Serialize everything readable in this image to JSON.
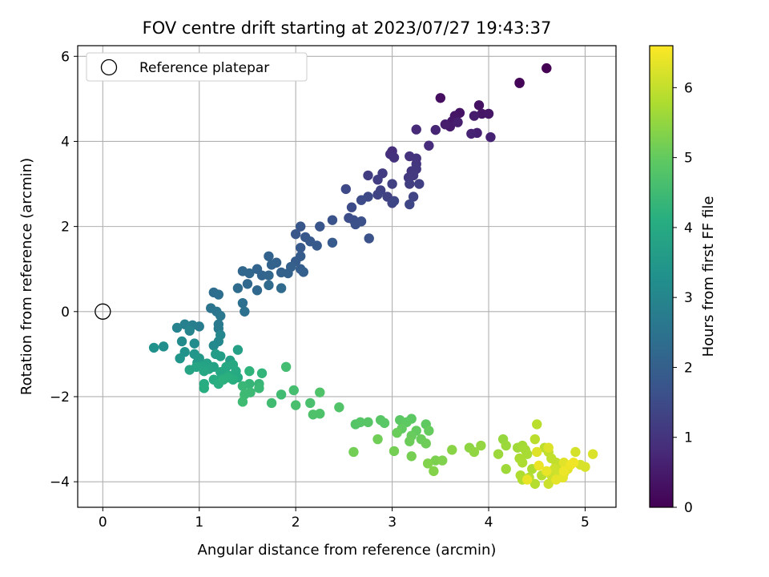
{
  "chart_data": {
    "type": "scatter",
    "title": "FOV centre drift starting at 2023/07/27 19:43:37",
    "xlabel": "Angular distance from reference (arcmin)",
    "ylabel": "Rotation from reference (arcmin)",
    "xlim": [
      -0.26,
      5.32
    ],
    "ylim": [
      -4.6,
      6.25
    ],
    "xticks": [
      0,
      1,
      2,
      3,
      4,
      5
    ],
    "yticks": [
      -4,
      -2,
      0,
      2,
      4,
      6
    ],
    "xtick_labels": [
      "0",
      "1",
      "2",
      "3",
      "4",
      "5"
    ],
    "ytick_labels": [
      "−4",
      "−2",
      "0",
      "2",
      "4",
      "6"
    ],
    "grid": true,
    "colormap": "viridis",
    "colorbar": {
      "label": "Hours from first FF file",
      "range": [
        0,
        6.6
      ],
      "ticks": [
        0,
        1,
        2,
        3,
        4,
        5,
        6
      ],
      "tick_labels": [
        "0",
        "1",
        "2",
        "3",
        "4",
        "5",
        "6"
      ]
    },
    "legend": {
      "position": "top-left",
      "entries": [
        {
          "label": "Reference platepar",
          "marker": "open-circle"
        }
      ]
    },
    "reference_point": {
      "x": 0,
      "y": 0
    },
    "points": [
      [
        4.6,
        5.72,
        0.0
      ],
      [
        4.32,
        5.37,
        0.05
      ],
      [
        4.32,
        5.38,
        0.08
      ],
      [
        3.5,
        5.02,
        0.25
      ],
      [
        3.9,
        4.85,
        0.3
      ],
      [
        3.7,
        4.67,
        0.35
      ],
      [
        3.65,
        4.6,
        0.38
      ],
      [
        3.93,
        4.65,
        0.4
      ],
      [
        4.0,
        4.65,
        0.42
      ],
      [
        3.62,
        4.47,
        0.45
      ],
      [
        3.6,
        4.35,
        0.5
      ],
      [
        3.85,
        4.6,
        0.52
      ],
      [
        3.55,
        4.4,
        0.55
      ],
      [
        3.68,
        4.45,
        0.58
      ],
      [
        3.88,
        4.2,
        0.62
      ],
      [
        4.02,
        4.1,
        0.66
      ],
      [
        3.82,
        4.18,
        0.68
      ],
      [
        3.45,
        4.27,
        0.72
      ],
      [
        3.25,
        4.28,
        0.78
      ],
      [
        3.38,
        3.9,
        0.85
      ],
      [
        3.0,
        3.77,
        0.9
      ],
      [
        2.98,
        3.7,
        0.92
      ],
      [
        3.02,
        3.62,
        0.95
      ],
      [
        3.18,
        3.65,
        0.97
      ],
      [
        3.25,
        3.6,
        1.0
      ],
      [
        3.25,
        3.47,
        1.02
      ],
      [
        3.2,
        3.3,
        1.05
      ],
      [
        3.25,
        3.35,
        1.08
      ],
      [
        3.17,
        3.15,
        1.1
      ],
      [
        3.22,
        3.2,
        1.12
      ],
      [
        2.9,
        3.25,
        1.15
      ],
      [
        2.75,
        3.2,
        1.18
      ],
      [
        2.85,
        3.1,
        1.2
      ],
      [
        3.18,
        3.0,
        1.22
      ],
      [
        3.28,
        3.0,
        1.24
      ],
      [
        3.0,
        3.0,
        1.26
      ],
      [
        2.88,
        2.85,
        1.28
      ],
      [
        2.95,
        2.7,
        1.3
      ],
      [
        3.22,
        2.7,
        1.32
      ],
      [
        2.85,
        2.75,
        1.34
      ],
      [
        3.0,
        2.55,
        1.36
      ],
      [
        3.02,
        2.6,
        1.38
      ],
      [
        3.18,
        2.52,
        1.4
      ],
      [
        2.52,
        2.88,
        1.45
      ],
      [
        2.75,
        2.7,
        1.48
      ],
      [
        2.68,
        2.62,
        1.5
      ],
      [
        2.58,
        2.45,
        1.52
      ],
      [
        2.55,
        2.2,
        1.55
      ],
      [
        2.6,
        2.15,
        1.58
      ],
      [
        2.68,
        2.12,
        1.6
      ],
      [
        2.62,
        2.05,
        1.62
      ],
      [
        2.76,
        1.72,
        1.65
      ],
      [
        2.38,
        2.15,
        1.7
      ],
      [
        2.25,
        2.0,
        1.72
      ],
      [
        2.05,
        2.0,
        1.75
      ],
      [
        2.0,
        1.82,
        1.78
      ],
      [
        2.1,
        1.75,
        1.8
      ],
      [
        2.15,
        1.65,
        1.82
      ],
      [
        2.05,
        1.5,
        1.84
      ],
      [
        2.22,
        1.55,
        1.86
      ],
      [
        2.38,
        1.62,
        1.88
      ],
      [
        2.05,
        1.3,
        1.9
      ],
      [
        2.0,
        1.18,
        1.92
      ],
      [
        2.05,
        1.0,
        1.95
      ],
      [
        2.08,
        0.93,
        1.98
      ],
      [
        1.95,
        1.05,
        2.0
      ],
      [
        1.92,
        0.9,
        2.02
      ],
      [
        1.85,
        0.92,
        2.04
      ],
      [
        1.8,
        1.15,
        2.06
      ],
      [
        1.75,
        1.1,
        2.08
      ],
      [
        1.72,
        1.3,
        2.1
      ],
      [
        1.6,
        1.0,
        2.12
      ],
      [
        1.65,
        0.85,
        2.14
      ],
      [
        1.72,
        0.85,
        2.16
      ],
      [
        1.52,
        0.9,
        2.18
      ],
      [
        1.45,
        0.95,
        2.2
      ],
      [
        1.5,
        0.65,
        2.22
      ],
      [
        1.6,
        0.5,
        2.24
      ],
      [
        1.72,
        0.62,
        2.26
      ],
      [
        1.85,
        0.55,
        2.28
      ],
      [
        1.4,
        0.55,
        2.3
      ],
      [
        1.15,
        0.45,
        2.35
      ],
      [
        1.2,
        0.4,
        2.38
      ],
      [
        1.45,
        0.2,
        2.4
      ],
      [
        1.47,
        0.0,
        2.45
      ],
      [
        1.12,
        0.08,
        2.5
      ],
      [
        1.18,
        0.0,
        2.55
      ],
      [
        1.22,
        -0.1,
        2.6
      ],
      [
        1.2,
        -0.3,
        2.65
      ],
      [
        1.2,
        -0.4,
        2.7
      ],
      [
        1.0,
        -0.35,
        2.75
      ],
      [
        0.93,
        -0.32,
        2.8
      ],
      [
        0.85,
        -0.3,
        2.85
      ],
      [
        0.77,
        -0.38,
        2.9
      ],
      [
        0.9,
        -0.45,
        2.95
      ],
      [
        1.22,
        -0.55,
        3.0
      ],
      [
        1.2,
        -0.7,
        3.05
      ],
      [
        1.15,
        -0.8,
        3.1
      ],
      [
        0.82,
        -0.7,
        3.15
      ],
      [
        0.95,
        -0.75,
        3.2
      ],
      [
        0.63,
        -0.82,
        3.25
      ],
      [
        0.53,
        -0.85,
        3.3
      ],
      [
        0.85,
        -0.95,
        3.35
      ],
      [
        0.8,
        -1.1,
        3.4
      ],
      [
        0.95,
        -1.0,
        3.45
      ],
      [
        1.0,
        -1.1,
        3.5
      ],
      [
        0.98,
        -1.2,
        3.55
      ],
      [
        1.17,
        -1.0,
        3.6
      ],
      [
        1.22,
        -1.05,
        3.65
      ],
      [
        1.32,
        -1.15,
        3.7
      ],
      [
        1.4,
        -0.9,
        3.72
      ],
      [
        1.08,
        -1.22,
        3.75
      ],
      [
        1.15,
        -1.3,
        3.78
      ],
      [
        1.03,
        -1.28,
        3.8
      ],
      [
        1.1,
        -1.35,
        3.82
      ],
      [
        0.9,
        -1.37,
        3.85
      ],
      [
        0.97,
        -1.3,
        3.87
      ],
      [
        1.05,
        -1.4,
        3.9
      ],
      [
        1.22,
        -1.42,
        3.92
      ],
      [
        1.28,
        -1.3,
        3.94
      ],
      [
        1.35,
        -1.25,
        3.96
      ],
      [
        1.38,
        -1.4,
        3.98
      ],
      [
        1.3,
        -1.5,
        4.0
      ],
      [
        1.4,
        -1.55,
        4.02
      ],
      [
        1.22,
        -1.6,
        4.04
      ],
      [
        1.15,
        -1.6,
        4.06
      ],
      [
        1.05,
        -1.7,
        4.08
      ],
      [
        1.05,
        -1.8,
        4.1
      ],
      [
        1.2,
        -1.7,
        4.12
      ],
      [
        1.35,
        -1.6,
        4.14
      ],
      [
        1.3,
        -1.55,
        4.16
      ],
      [
        1.25,
        -1.6,
        4.18
      ],
      [
        1.52,
        -1.4,
        4.25
      ],
      [
        1.65,
        -1.45,
        4.3
      ],
      [
        1.52,
        -1.7,
        4.35
      ],
      [
        1.62,
        -1.7,
        4.38
      ],
      [
        1.45,
        -1.75,
        4.4
      ],
      [
        1.62,
        -1.8,
        4.42
      ],
      [
        1.53,
        -1.9,
        4.44
      ],
      [
        1.47,
        -1.95,
        4.46
      ],
      [
        1.45,
        -2.12,
        4.48
      ],
      [
        1.75,
        -2.15,
        4.5
      ],
      [
        1.85,
        -1.95,
        4.52
      ],
      [
        1.9,
        -1.3,
        4.55
      ],
      [
        1.98,
        -1.85,
        4.6
      ],
      [
        2.0,
        -2.2,
        4.62
      ],
      [
        2.15,
        -2.15,
        4.65
      ],
      [
        2.25,
        -2.4,
        4.7
      ],
      [
        2.18,
        -2.42,
        4.72
      ],
      [
        2.25,
        -1.9,
        4.74
      ],
      [
        2.45,
        -2.25,
        4.76
      ],
      [
        2.62,
        -2.65,
        4.8
      ],
      [
        2.67,
        -2.6,
        4.82
      ],
      [
        2.75,
        -2.6,
        4.84
      ],
      [
        2.88,
        -2.55,
        4.86
      ],
      [
        2.92,
        -2.62,
        4.88
      ],
      [
        3.08,
        -2.55,
        4.9
      ],
      [
        3.2,
        -2.52,
        4.92
      ],
      [
        3.15,
        -2.6,
        4.94
      ],
      [
        3.35,
        -2.65,
        4.96
      ],
      [
        3.1,
        -2.75,
        4.98
      ],
      [
        3.25,
        -2.8,
        5.0
      ],
      [
        3.38,
        -2.8,
        5.02
      ],
      [
        3.2,
        -2.92,
        5.04
      ],
      [
        3.3,
        -3.0,
        5.06
      ],
      [
        3.05,
        -2.85,
        5.08
      ],
      [
        3.18,
        -3.05,
        5.1
      ],
      [
        3.35,
        -3.1,
        5.12
      ],
      [
        2.85,
        -3.0,
        5.14
      ],
      [
        2.6,
        -3.3,
        5.16
      ],
      [
        3.02,
        -3.28,
        5.18
      ],
      [
        3.2,
        -3.4,
        5.2
      ],
      [
        3.45,
        -3.5,
        5.25
      ],
      [
        3.52,
        -3.5,
        5.3
      ],
      [
        3.37,
        -3.57,
        5.32
      ],
      [
        3.43,
        -3.75,
        5.35
      ],
      [
        3.62,
        -3.25,
        5.4
      ],
      [
        3.8,
        -3.2,
        5.45
      ],
      [
        3.85,
        -3.3,
        5.48
      ],
      [
        3.92,
        -3.15,
        5.5
      ],
      [
        4.15,
        -3.0,
        5.55
      ],
      [
        4.18,
        -3.15,
        5.58
      ],
      [
        4.1,
        -3.35,
        5.6
      ],
      [
        4.18,
        -3.7,
        5.62
      ],
      [
        4.3,
        -3.2,
        5.65
      ],
      [
        4.35,
        -3.15,
        5.68
      ],
      [
        4.38,
        -3.25,
        5.7
      ],
      [
        4.4,
        -3.35,
        5.72
      ],
      [
        4.32,
        -3.45,
        5.74
      ],
      [
        4.35,
        -3.55,
        5.76
      ],
      [
        4.45,
        -3.7,
        5.78
      ],
      [
        4.33,
        -3.85,
        5.8
      ],
      [
        4.35,
        -3.95,
        5.82
      ],
      [
        4.42,
        -3.9,
        5.84
      ],
      [
        4.48,
        -4.05,
        5.86
      ],
      [
        4.55,
        -3.85,
        5.88
      ],
      [
        4.5,
        -2.65,
        5.9
      ],
      [
        4.48,
        -3.0,
        5.92
      ],
      [
        4.58,
        -3.2,
        5.94
      ],
      [
        4.62,
        -3.3,
        5.96
      ],
      [
        4.65,
        -3.45,
        5.98
      ],
      [
        4.7,
        -3.55,
        6.0
      ],
      [
        4.72,
        -3.68,
        6.02
      ],
      [
        4.75,
        -3.75,
        6.04
      ],
      [
        4.65,
        -3.85,
        6.06
      ],
      [
        4.62,
        -4.05,
        6.08
      ],
      [
        4.68,
        -3.7,
        6.1
      ],
      [
        4.72,
        -3.85,
        6.12
      ],
      [
        4.8,
        -3.6,
        6.14
      ],
      [
        4.78,
        -3.8,
        6.16
      ],
      [
        4.9,
        -3.3,
        6.18
      ],
      [
        4.95,
        -3.6,
        6.2
      ],
      [
        5.0,
        -3.65,
        6.22
      ],
      [
        5.08,
        -3.35,
        6.24
      ],
      [
        4.62,
        -3.2,
        6.26
      ],
      [
        4.5,
        -3.3,
        6.28
      ],
      [
        4.78,
        -3.55,
        6.3
      ],
      [
        4.82,
        -3.7,
        6.32
      ],
      [
        4.77,
        -3.9,
        6.34
      ],
      [
        4.7,
        -3.95,
        6.36
      ],
      [
        4.6,
        -3.75,
        6.38
      ],
      [
        4.4,
        -3.95,
        6.4
      ],
      [
        4.52,
        -3.62,
        6.42
      ],
      [
        4.78,
        -3.75,
        6.44
      ],
      [
        4.85,
        -3.6,
        6.46
      ],
      [
        4.88,
        -3.55,
        6.48
      ]
    ]
  }
}
